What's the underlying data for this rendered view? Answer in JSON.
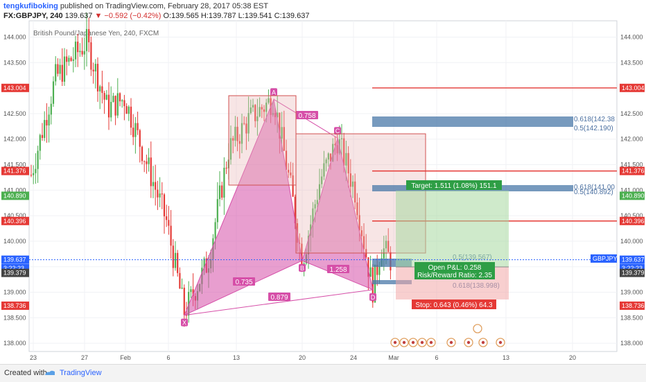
{
  "header": {
    "author": "tengkufiboking",
    "published_text": "published on TradingView.com, February 28, 2017 05:38 EST",
    "symbol_line": "FX:GBPJPY, 240",
    "last": "139.637",
    "change": "▼ −0.592 (−0.42%)",
    "ohlc": "O:139.565 H:139.787 L:139.541 C:139.637",
    "series_title": "British Pound/Japanese Yen, 240, FXCM"
  },
  "footer": {
    "created_with": "Created with",
    "brand": "TradingView"
  },
  "colors": {
    "bull": "#4caf50",
    "bear": "#e53935",
    "pattern": "#d64fa8",
    "fib": "#4a78a8",
    "hline": "#e53935"
  },
  "chart_data": {
    "type": "candlestick",
    "y_ticks": [
      "138.000",
      "138.500",
      "139.000",
      "139.500",
      "140.000",
      "140.500",
      "141.000",
      "141.500",
      "142.000",
      "142.500",
      "143.000",
      "143.500",
      "144.000"
    ],
    "x_ticks": [
      "23",
      "27",
      "Feb",
      "6",
      "13",
      "20",
      "24",
      "Mar",
      "6",
      "13",
      "20"
    ],
    "hlines": [
      143.004,
      141.376,
      140.396
    ],
    "price_labels": [
      {
        "text": "143.004",
        "price": 143.004,
        "bg": "#e53935"
      },
      {
        "text": "141.376",
        "price": 141.376,
        "bg": "#e53935"
      },
      {
        "text": "140.890",
        "price": 140.89,
        "bg": "#4caf50"
      },
      {
        "text": "140.396",
        "price": 140.396,
        "bg": "#e53935"
      },
      {
        "text": "139.637",
        "price": 139.637,
        "bg": "#2962ff"
      },
      {
        "text": "3:22:23",
        "price": 139.47,
        "bg": "#2962ff"
      },
      {
        "text": "139.379",
        "price": 139.379,
        "bg": "#444444"
      },
      {
        "text": "138.736",
        "price": 138.736,
        "bg": "#e53935"
      }
    ],
    "right_labels": [
      {
        "text": "143.004",
        "price": 143.004,
        "bg": "#e53935"
      },
      {
        "text": "141.376",
        "price": 141.376,
        "bg": "#e53935"
      },
      {
        "text": "140.890",
        "price": 140.89,
        "bg": "#4caf50"
      },
      {
        "text": "140.396",
        "price": 140.396,
        "bg": "#e53935"
      },
      {
        "text": "GBPJPY",
        "price": 139.66,
        "bg": "#2962ff"
      },
      {
        "text": "139.637",
        "price": 139.637,
        "bg": "#2962ff"
      },
      {
        "text": "3:22:23",
        "price": 139.47,
        "bg": "#2962ff"
      },
      {
        "text": "139.379",
        "price": 139.379,
        "bg": "#444444"
      },
      {
        "text": "138.736",
        "price": 138.736,
        "bg": "#e53935"
      }
    ],
    "pattern_points": [
      {
        "label": "X",
        "price": 138.55
      },
      {
        "label": "A",
        "price": 142.78
      },
      {
        "label": "B",
        "price": 139.62
      },
      {
        "label": "C",
        "price": 142.02
      },
      {
        "label": "D",
        "price": 139.05
      }
    ],
    "ratios": [
      "0.758",
      "1.258",
      "0.735",
      "0.879"
    ],
    "fib_labels": [
      "0.618(142.38",
      "0.5(142.190)",
      "0.618(141.00",
      "0.5(140.892)",
      "0.5(139.567)",
      "0.618(138.998)"
    ],
    "position": {
      "target": "Target: 1.511 (1.08%) 151.1",
      "open_pl": "Open P&L: 0.258",
      "rr": "Risk/Reward Ratio: 2.35",
      "stop": "Stop: 0.643 (0.46%) 64.3"
    }
  }
}
